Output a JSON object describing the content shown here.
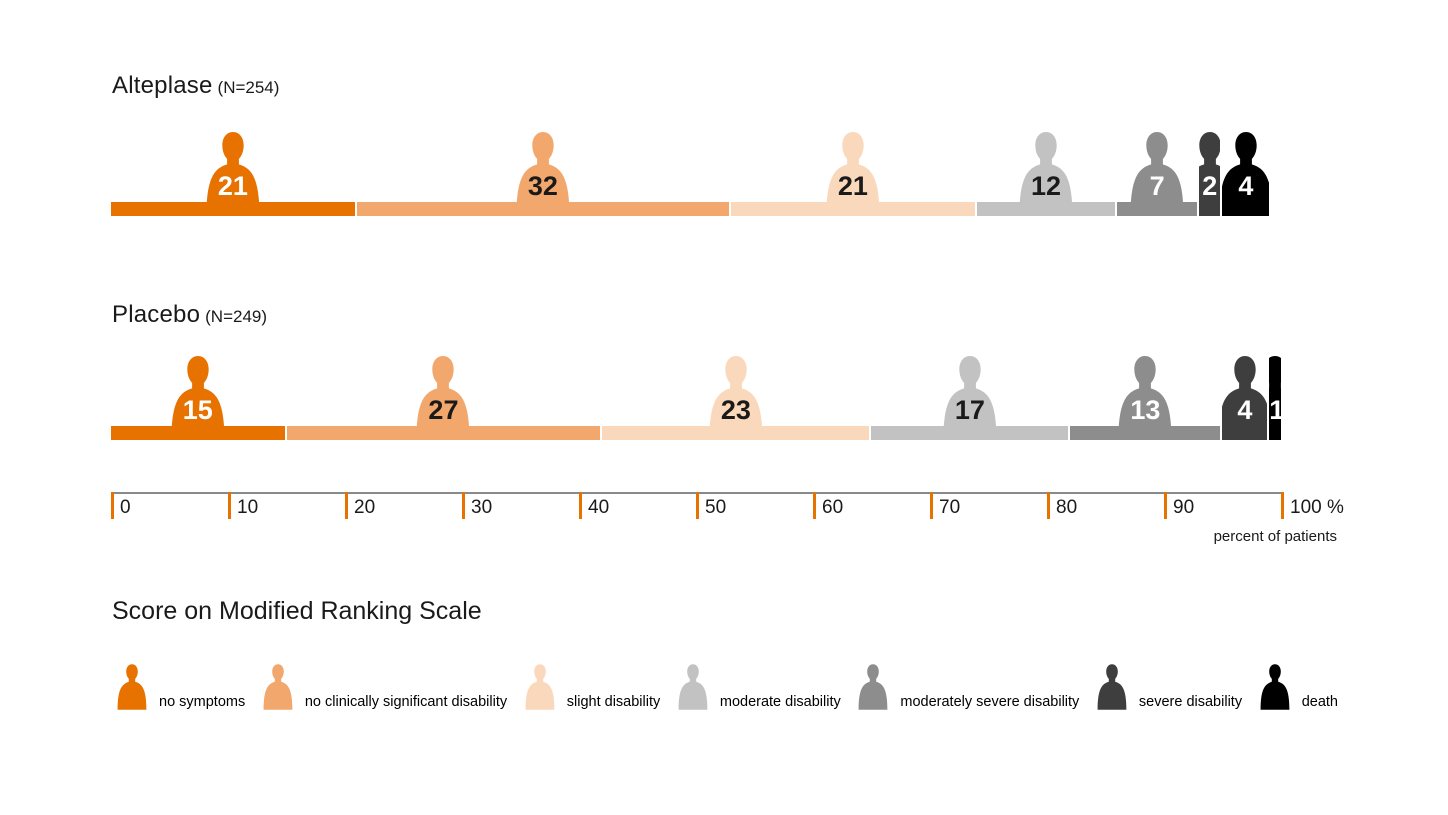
{
  "chart_data": {
    "type": "bar",
    "subtype": "horizontal-stacked-pictogram",
    "groups": [
      {
        "label": "Alteplase",
        "n_label": "(N=254)",
        "values": [
          21,
          32,
          21,
          12,
          7,
          2,
          4
        ]
      },
      {
        "label": "Placebo",
        "n_label": "(N=249)",
        "values": [
          15,
          27,
          23,
          17,
          13,
          4,
          1
        ]
      }
    ],
    "categories": [
      {
        "label": "no symptoms",
        "color": "#e87200",
        "value_text_color": "#ffffff"
      },
      {
        "label": "no clinically significant disability",
        "color": "#f2a76c",
        "value_text_color": "#1a1a1a"
      },
      {
        "label": "slight disability",
        "color": "#fad8bb",
        "value_text_color": "#1a1a1a"
      },
      {
        "label": "moderate disability",
        "color": "#c2c2c2",
        "value_text_color": "#1a1a1a"
      },
      {
        "label": "moderately severe disability",
        "color": "#8d8d8d",
        "value_text_color": "#ffffff"
      },
      {
        "label": "severe disability",
        "color": "#3e3e3e",
        "value_text_color": "#ffffff"
      },
      {
        "label": "death",
        "color": "#000000",
        "value_text_color": "#ffffff"
      }
    ],
    "axis": {
      "min": 0,
      "max": 100,
      "ticks": [
        {
          "v": 0,
          "label": "0"
        },
        {
          "v": 10,
          "label": "10"
        },
        {
          "v": 20,
          "label": "20"
        },
        {
          "v": 30,
          "label": "30"
        },
        {
          "v": 40,
          "label": "40"
        },
        {
          "v": 50,
          "label": "50"
        },
        {
          "v": 60,
          "label": "60"
        },
        {
          "v": 70,
          "label": "70"
        },
        {
          "v": 80,
          "label": "80"
        },
        {
          "v": 90,
          "label": "90"
        },
        {
          "v": 100,
          "label": "100 %"
        }
      ],
      "caption": "percent of patients",
      "tick_color": "#e87200",
      "line_color": "#8a8a8a"
    },
    "legend_title": "Score on Modified Ranking Scale"
  }
}
